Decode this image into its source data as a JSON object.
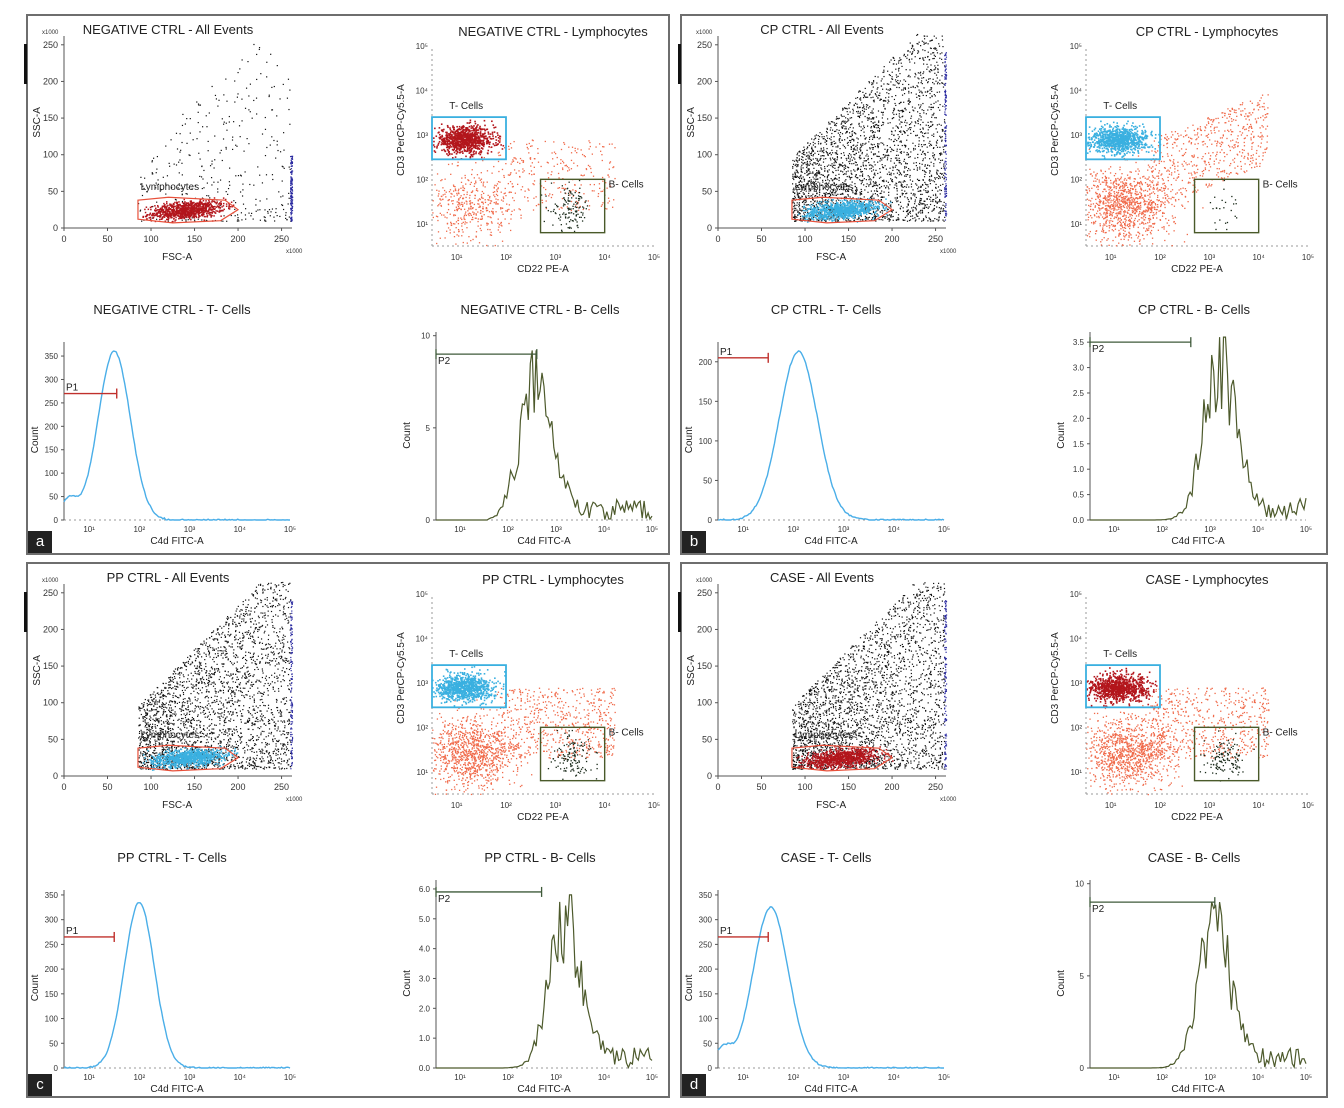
{
  "panels": [
    {
      "letter": "a",
      "titles": {
        "all_events": "NEGATIVE CTRL - All Events",
        "lymphocytes": "NEGATIVE CTRL - Lymphocytes",
        "t_cells": "NEGATIVE CTRL - T- Cells",
        "b_cells": "NEGATIVE CTRL - B- Cells"
      }
    },
    {
      "letter": "b",
      "titles": {
        "all_events": "CP CTRL - All Events",
        "lymphocytes": "CP CTRL - Lymphocytes",
        "t_cells": "CP CTRL - T- Cells",
        "b_cells": "CP CTRL - B- Cells"
      }
    },
    {
      "letter": "c",
      "titles": {
        "all_events": "PP CTRL - All Events",
        "lymphocytes": "PP CTRL - Lymphocytes",
        "t_cells": "PP CTRL - T- Cells",
        "b_cells": "PP CTRL - B- Cells"
      }
    },
    {
      "letter": "d",
      "titles": {
        "all_events": "CASE - All Events",
        "lymphocytes": "CASE - Lymphocytes",
        "t_cells": "CASE - T- Cells",
        "b_cells": "CASE - B- Cells"
      }
    }
  ],
  "chart_data": {
    "type": "scatter",
    "all_events": {
      "xlabel": "FSC-A",
      "ylabel": "SSC-A",
      "x_ticks": [
        "0",
        "50",
        "100",
        "150",
        "200",
        "250"
      ],
      "y_ticks": [
        "0",
        "50",
        "100",
        "150",
        "200",
        "250"
      ],
      "multiplier": "x1000",
      "xlim": [
        0,
        262
      ],
      "ylim": [
        0,
        262
      ],
      "gate_label": "Lymphocytes",
      "gate_polygon": [
        [
          85,
          12
        ],
        [
          125,
          7
        ],
        [
          180,
          10
        ],
        [
          200,
          25
        ],
        [
          185,
          38
        ],
        [
          120,
          42
        ],
        [
          85,
          38
        ]
      ],
      "gate_color": "#e8503a",
      "colors": {
        "events": "#111111",
        "lymphocyte_gated": [
          "#b3161c",
          "#3ab0e0",
          "#3ab0e0",
          "#b3161c"
        ],
        "axis_edge": "#2a2aa0"
      }
    },
    "lymphocytes": {
      "xlabel": "CD22 PE-A",
      "ylabel": "CD3 PerCP-Cy5.5-A",
      "x_ticks": [
        "10¹",
        "10²",
        "10³",
        "10⁴",
        "10⁵"
      ],
      "y_ticks": [
        "10¹",
        "10²",
        "10³",
        "10⁴",
        "10⁵"
      ],
      "x_log_range": [
        0.5,
        5.0
      ],
      "y_log_range": [
        0.5,
        5.0
      ],
      "t_gate_label": "T- Cells",
      "b_gate_label": "B- Cells",
      "t_gate": {
        "x": [
          0.5,
          2.0
        ],
        "y": [
          2.45,
          3.4
        ]
      },
      "b_gate": {
        "x": [
          2.7,
          4.0
        ],
        "y": [
          0.8,
          2.0
        ]
      },
      "t_gate_color": "#3ab0e0",
      "b_gate_color": "#4a5a2a"
    },
    "t_cells": {
      "xlabel": "C4d FITC-A",
      "ylabel": "Count",
      "x_ticks": [
        "10¹",
        "10²",
        "10³",
        "10⁴",
        "10⁵"
      ],
      "gate_label": "P1",
      "line_color": "#4aaee8",
      "gate_color": "#c0302c",
      "panels": [
        {
          "y_ticks": [
            "0",
            "50",
            "100",
            "150",
            "200",
            "250",
            "300",
            "350"
          ],
          "ymax": 380,
          "peak_log": 1.5,
          "peak": 360,
          "width": 0.32,
          "gate": [
            0.5,
            1.55
          ],
          "gate_y": 270
        },
        {
          "y_ticks": [
            "0",
            "50",
            "100",
            "150",
            "200"
          ],
          "ymax": 225,
          "peak_log": 2.1,
          "peak": 213,
          "width": 0.38,
          "gate": [
            0.5,
            1.5
          ],
          "gate_y": 205
        },
        {
          "y_ticks": [
            "0",
            "50",
            "100",
            "150",
            "200",
            "250",
            "300",
            "350"
          ],
          "ymax": 360,
          "peak_log": 2.0,
          "peak": 335,
          "width": 0.3,
          "gate": [
            0.5,
            1.5
          ],
          "gate_y": 265
        },
        {
          "y_ticks": [
            "0",
            "50",
            "100",
            "150",
            "200",
            "250",
            "300",
            "350"
          ],
          "ymax": 360,
          "peak_log": 1.55,
          "peak": 325,
          "width": 0.35,
          "gate": [
            0.5,
            1.5
          ],
          "gate_y": 265
        }
      ]
    },
    "b_cells": {
      "xlabel": "C4d FITC-A",
      "ylabel": "Count",
      "x_ticks": [
        "10¹",
        "10²",
        "10³",
        "10⁴",
        "10⁵"
      ],
      "gate_label": "P2",
      "line_color": "#4d5a2c",
      "gate_color": "#3f5a3a",
      "panels": [
        {
          "y_ticks": [
            "0",
            "5",
            "10"
          ],
          "ymax": 10.2,
          "peak_log": 2.6,
          "peak": 9.2,
          "gate": [
            0.5,
            2.6
          ],
          "gate_y": 9.0
        },
        {
          "y_ticks": [
            "0.0",
            "0.5",
            "1.0",
            "1.5",
            "2.0",
            "2.5",
            "3.0",
            "3.5"
          ],
          "ymax": 3.7,
          "peak_log": 3.2,
          "peak": 3.6,
          "gate": [
            0.5,
            2.6
          ],
          "gate_y": 3.5
        },
        {
          "y_ticks": [
            "0.0",
            "1.0",
            "2.0",
            "3.0",
            "4.0",
            "5.0",
            "6.0"
          ],
          "ymax": 6.3,
          "peak_log": 3.2,
          "peak": 5.8,
          "gate": [
            0.5,
            2.7
          ],
          "gate_y": 5.9
        },
        {
          "y_ticks": [
            "0",
            "5",
            "10"
          ],
          "ymax": 10.2,
          "peak_log": 3.1,
          "peak": 9.0,
          "gate": [
            0.5,
            3.1
          ],
          "gate_y": 9.0
        }
      ]
    }
  }
}
